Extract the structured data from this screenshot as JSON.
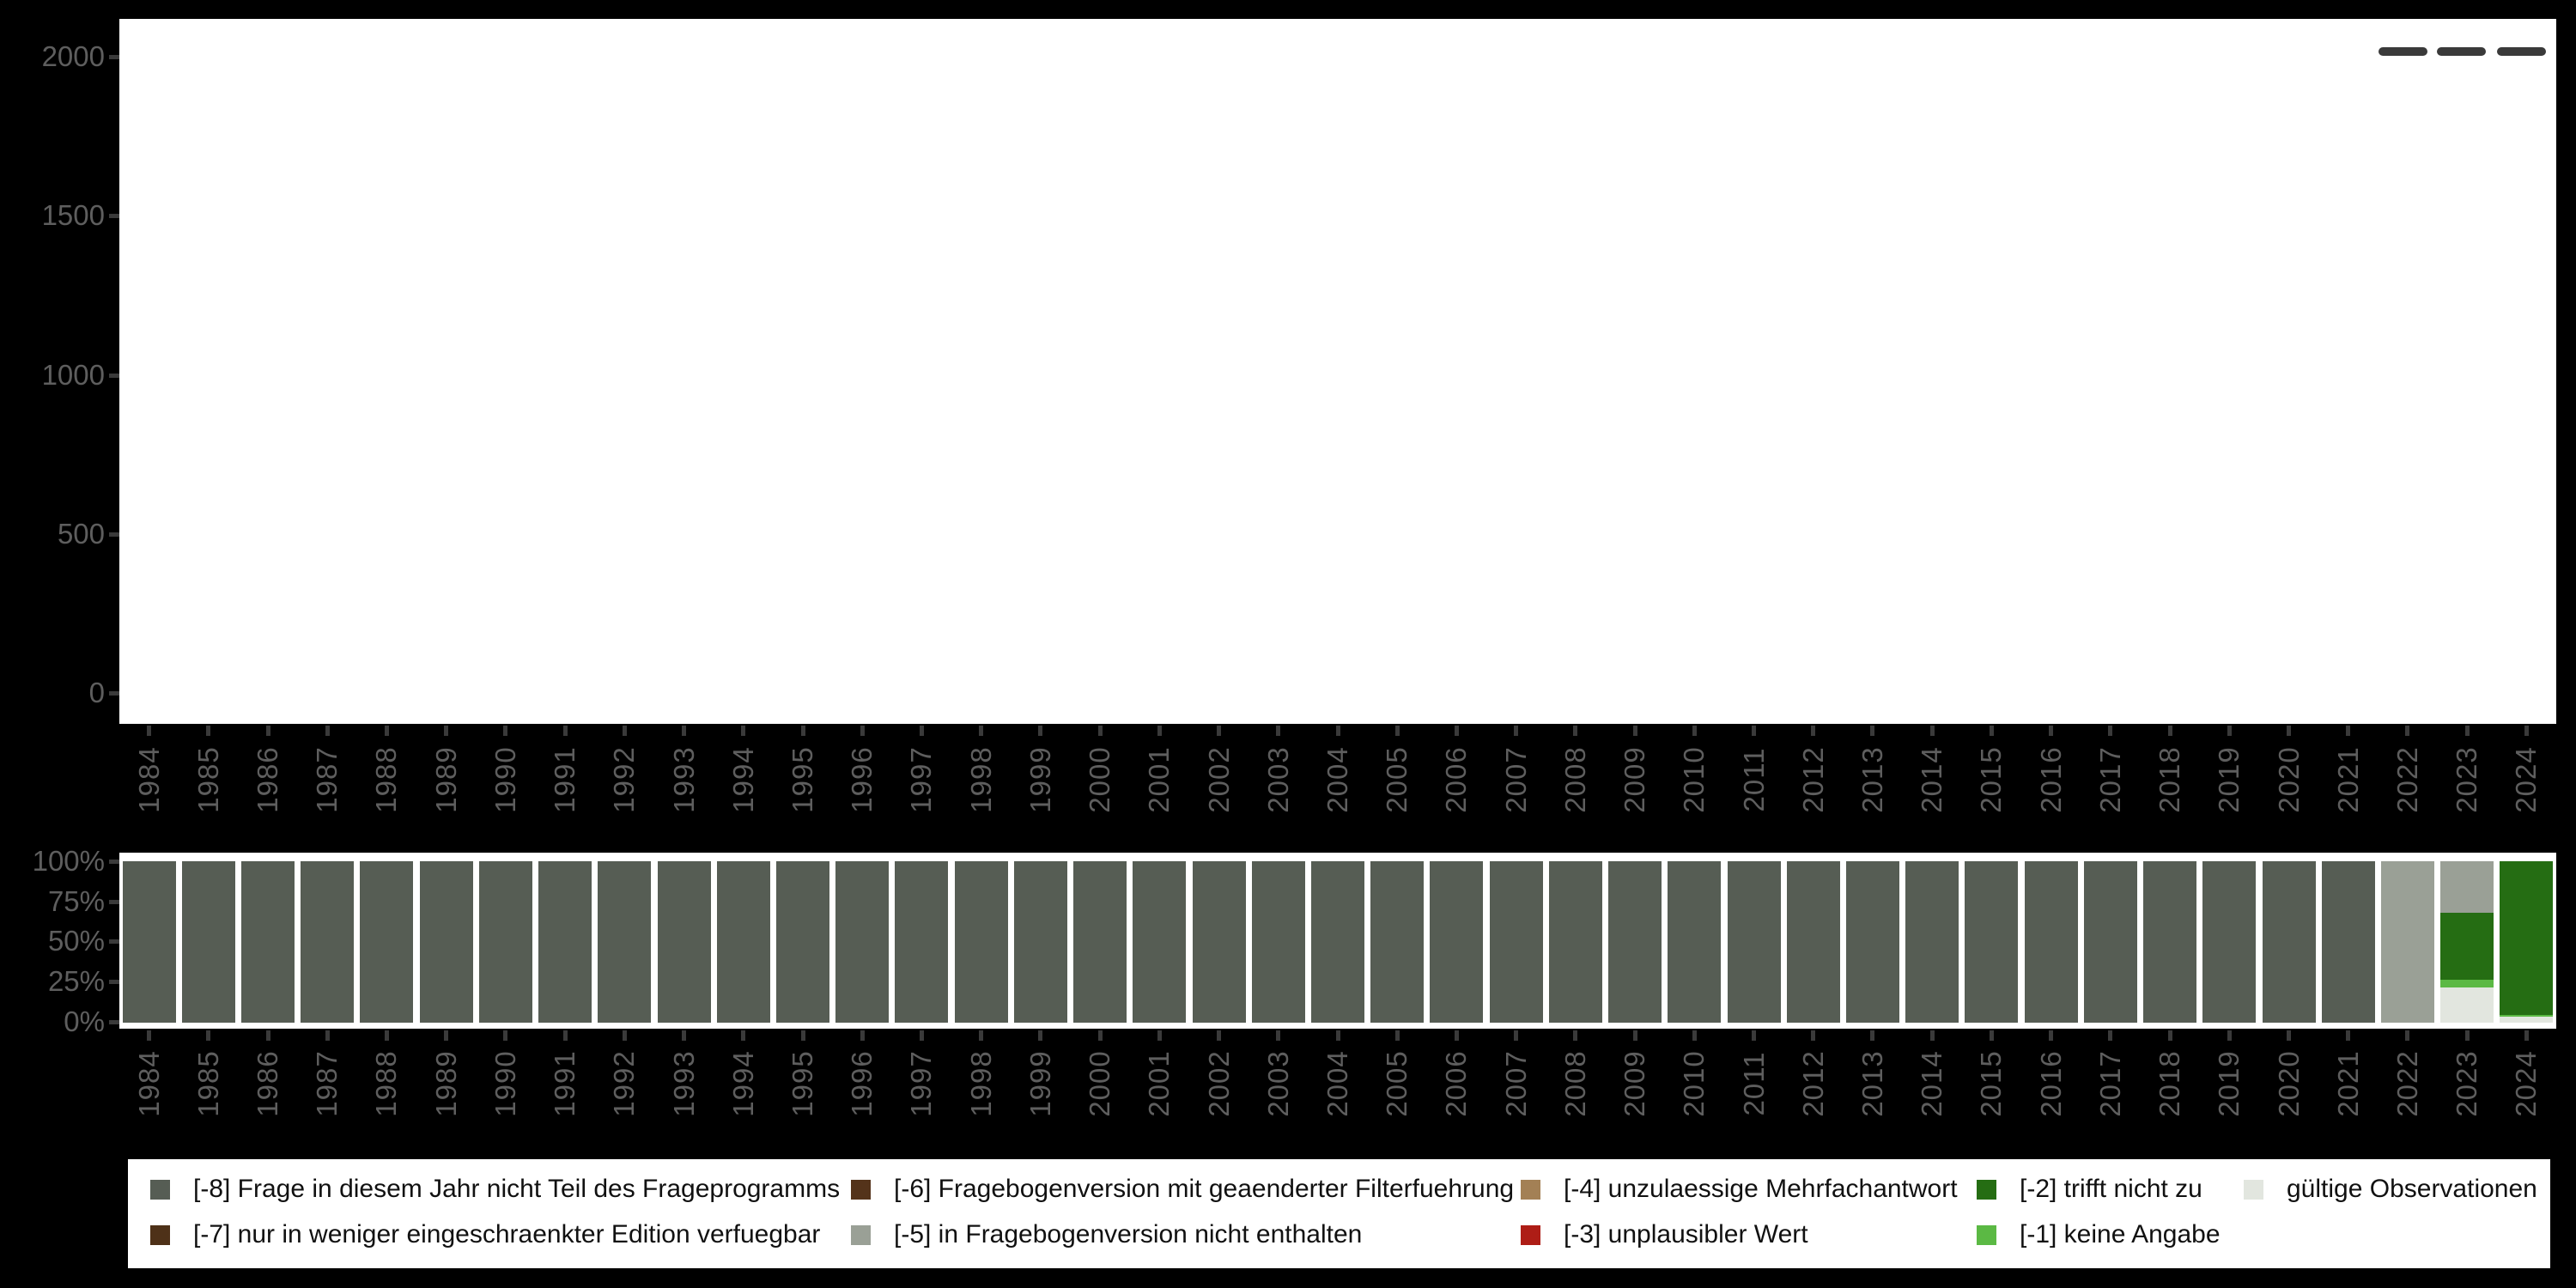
{
  "app": {
    "background": "#000000",
    "panel_color": "#FFFFFF"
  },
  "years": [
    "1984",
    "1985",
    "1986",
    "1987",
    "1988",
    "1989",
    "1990",
    "1991",
    "1992",
    "1993",
    "1994",
    "1995",
    "1996",
    "1997",
    "1998",
    "1999",
    "2000",
    "2001",
    "2002",
    "2003",
    "2004",
    "2005",
    "2006",
    "2007",
    "2008",
    "2009",
    "2010",
    "2011",
    "2012",
    "2013",
    "2014",
    "2015",
    "2016",
    "2017",
    "2018",
    "2019",
    "2020",
    "2021",
    "2022",
    "2023",
    "2024"
  ],
  "count_chart": {
    "y_ticks": [
      "2000",
      "1500",
      "1000",
      "500",
      "0"
    ],
    "menu_dashes": 3,
    "dash_color": "#3A3A3A"
  },
  "percent_chart": {
    "y_ticks": [
      "100%",
      "75%",
      "50%",
      "25%",
      "0%"
    ]
  },
  "legend": {
    "items": {
      "neg8": {
        "label": "[-8] Frage in diesem Jahr nicht Teil des Frageprogramms",
        "color": "#565D54"
      },
      "neg7": {
        "label": "[-7] nur in weniger eingeschraenkter Edition verfuegbar",
        "color": "#4E3118"
      },
      "neg6": {
        "label": "[-6] Fragebogenversion mit geaenderter Filterfuehrung",
        "color": "#54331A"
      },
      "neg5": {
        "label": "[-5] in Fragebogenversion nicht enthalten",
        "color": "#9AA096"
      },
      "neg4": {
        "label": "[-4] unzulaessige Mehrfachantwort",
        "color": "#A38055"
      },
      "neg3": {
        "label": "[-3] unplausibler Wert",
        "color": "#AE1D16"
      },
      "neg2": {
        "label": "[-2] trifft nicht zu",
        "color": "#256D13"
      },
      "neg1": {
        "label": "[-1] keine Angabe",
        "color": "#5BB944"
      },
      "valid": {
        "label": "gültige Observationen",
        "color": "#E2E6DF"
      }
    },
    "columns": [
      [
        "neg8",
        "neg7"
      ],
      [
        "neg6",
        "neg5"
      ],
      [
        "neg4",
        "neg3"
      ],
      [
        "neg2",
        "neg1"
      ],
      [
        "valid"
      ]
    ]
  },
  "chart_data": [
    {
      "type": "bar",
      "stacked": true,
      "unit": "percent",
      "title": "",
      "xlabel": "",
      "ylabel": "",
      "ylim": [
        0,
        100
      ],
      "y_tick_labels": [
        "0%",
        "25%",
        "50%",
        "75%",
        "100%"
      ],
      "grid": false,
      "legend_position": "bottom",
      "categories": [
        "1984",
        "1985",
        "1986",
        "1987",
        "1988",
        "1989",
        "1990",
        "1991",
        "1992",
        "1993",
        "1994",
        "1995",
        "1996",
        "1997",
        "1998",
        "1999",
        "2000",
        "2001",
        "2002",
        "2003",
        "2004",
        "2005",
        "2006",
        "2007",
        "2008",
        "2009",
        "2010",
        "2011",
        "2012",
        "2013",
        "2014",
        "2015",
        "2016",
        "2017",
        "2018",
        "2019",
        "2020",
        "2021",
        "2022",
        "2023",
        "2024"
      ],
      "series": [
        {
          "key": "neg8",
          "name": "[-8] Frage in diesem Jahr nicht Teil des Frageprogramms",
          "values": [
            100,
            100,
            100,
            100,
            100,
            100,
            100,
            100,
            100,
            100,
            100,
            100,
            100,
            100,
            100,
            100,
            100,
            100,
            100,
            100,
            100,
            100,
            100,
            100,
            100,
            100,
            100,
            100,
            100,
            100,
            100,
            100,
            100,
            100,
            100,
            100,
            100,
            100,
            0,
            0,
            0
          ]
        },
        {
          "key": "neg5",
          "name": "[-5] in Fragebogenversion nicht enthalten",
          "values": [
            0,
            0,
            0,
            0,
            0,
            0,
            0,
            0,
            0,
            0,
            0,
            0,
            0,
            0,
            0,
            0,
            0,
            0,
            0,
            0,
            0,
            0,
            0,
            0,
            0,
            0,
            0,
            0,
            0,
            0,
            0,
            0,
            0,
            0,
            0,
            0,
            0,
            0,
            100,
            32,
            0
          ]
        },
        {
          "key": "neg2",
          "name": "[-2] trifft nicht zu",
          "values": [
            0,
            0,
            0,
            0,
            0,
            0,
            0,
            0,
            0,
            0,
            0,
            0,
            0,
            0,
            0,
            0,
            0,
            0,
            0,
            0,
            0,
            0,
            0,
            0,
            0,
            0,
            0,
            0,
            0,
            0,
            0,
            0,
            0,
            0,
            0,
            0,
            0,
            0,
            0,
            41.5,
            95.2
          ]
        },
        {
          "key": "neg1",
          "name": "[-1] keine Angabe",
          "values": [
            0,
            0,
            0,
            0,
            0,
            0,
            0,
            0,
            0,
            0,
            0,
            0,
            0,
            0,
            0,
            0,
            0,
            0,
            0,
            0,
            0,
            0,
            0,
            0,
            0,
            0,
            0,
            0,
            0,
            0,
            0,
            0,
            0,
            0,
            0,
            0,
            0,
            0,
            0,
            4.6,
            1.2
          ]
        },
        {
          "key": "valid",
          "name": "gültige Observationen",
          "values": [
            0,
            0,
            0,
            0,
            0,
            0,
            0,
            0,
            0,
            0,
            0,
            0,
            0,
            0,
            0,
            0,
            0,
            0,
            0,
            0,
            0,
            0,
            0,
            0,
            0,
            0,
            0,
            0,
            0,
            0,
            0,
            0,
            0,
            0,
            0,
            0,
            0,
            0,
            0,
            21.9,
            3.6
          ]
        }
      ]
    },
    {
      "type": "bar",
      "stacked": false,
      "title": "",
      "xlabel": "",
      "ylabel": "",
      "ylim": [
        0,
        2000
      ],
      "y_tick_labels": [
        "0",
        "500",
        "1000",
        "1500",
        "2000"
      ],
      "grid": false,
      "legend_position": "none",
      "categories": [
        "1984",
        "1985",
        "1986",
        "1987",
        "1988",
        "1989",
        "1990",
        "1991",
        "1992",
        "1993",
        "1994",
        "1995",
        "1996",
        "1997",
        "1998",
        "1999",
        "2000",
        "2001",
        "2002",
        "2003",
        "2004",
        "2005",
        "2006",
        "2007",
        "2008",
        "2009",
        "2010",
        "2011",
        "2012",
        "2013",
        "2014",
        "2015",
        "2016",
        "2017",
        "2018",
        "2019",
        "2020",
        "2021",
        "2022",
        "2023",
        "2024"
      ],
      "series": []
    }
  ]
}
